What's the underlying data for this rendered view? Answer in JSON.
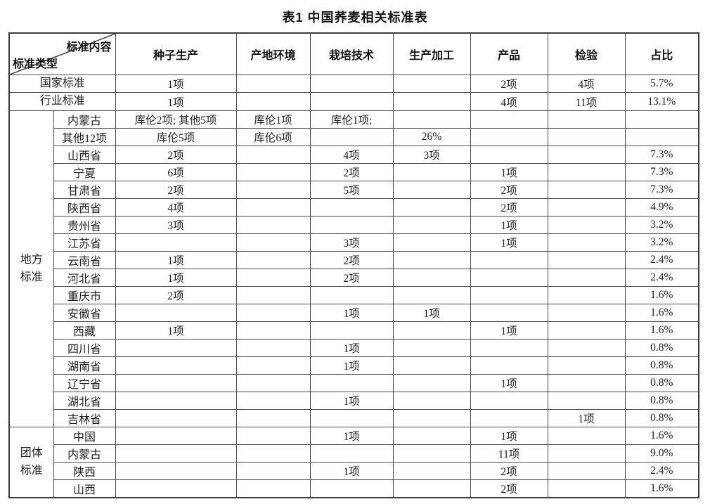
{
  "title": "表1 中国荞麦相关标准表",
  "table": {
    "corner": {
      "top_right": "标准内容",
      "bottom_left": "标准类型"
    },
    "columns": [
      "种子生产",
      "产地环境",
      "栽培技术",
      "生产加工",
      "产品",
      "检验",
      "占比"
    ],
    "sections": [
      {
        "category": "国家标准",
        "merged": true,
        "rows": [
          {
            "cells": [
              "1项",
              "",
              "",
              "",
              "2项",
              "4项",
              "5.7%"
            ]
          }
        ]
      },
      {
        "category": "行业标准",
        "merged": true,
        "rows": [
          {
            "cells": [
              "1项",
              "",
              "",
              "",
              "4项",
              "11项",
              "13.1%"
            ]
          }
        ]
      },
      {
        "category": "地方标准",
        "category_display": "地方\n标准",
        "merged": false,
        "rows": [
          {
            "region": "内蒙古",
            "cells": [
              "库伦2项; 其他5项",
              "库伦1项",
              "库伦1项;",
              "",
              "",
              "",
              ""
            ]
          },
          {
            "region": "其他12项",
            "cells": [
              "库伦5项",
              "库伦6项",
              "",
              "26%",
              "",
              "",
              ""
            ]
          },
          {
            "region": "山西省",
            "cells": [
              "2项",
              "",
              "4项",
              "3项",
              "",
              "",
              "7.3%"
            ]
          },
          {
            "region": "宁夏",
            "cells": [
              "6项",
              "",
              "2项",
              "",
              "1项",
              "",
              "7.3%"
            ]
          },
          {
            "region": "甘肃省",
            "cells": [
              "2项",
              "",
              "5项",
              "",
              "2项",
              "",
              "7.3%"
            ]
          },
          {
            "region": "陕西省",
            "cells": [
              "4项",
              "",
              "",
              "",
              "2项",
              "",
              "4.9%"
            ]
          },
          {
            "region": "贵州省",
            "cells": [
              "3项",
              "",
              "",
              "",
              "1项",
              "",
              "3.2%"
            ]
          },
          {
            "region": "江苏省",
            "cells": [
              "",
              "",
              "3项",
              "",
              "1项",
              "",
              "3.2%"
            ]
          },
          {
            "region": "云南省",
            "cells": [
              "1项",
              "",
              "2项",
              "",
              "",
              "",
              "2.4%"
            ]
          },
          {
            "region": "河北省",
            "cells": [
              "1项",
              "",
              "2项",
              "",
              "",
              "",
              "2.4%"
            ]
          },
          {
            "region": "重庆市",
            "cells": [
              "2项",
              "",
              "",
              "",
              "",
              "",
              "1.6%"
            ]
          },
          {
            "region": "安徽省",
            "cells": [
              "",
              "",
              "1项",
              "1项",
              "",
              "",
              "1.6%"
            ]
          },
          {
            "region": "西藏",
            "cells": [
              "1项",
              "",
              "",
              "",
              "1项",
              "",
              "1.6%"
            ]
          },
          {
            "region": "四川省",
            "cells": [
              "",
              "",
              "1项",
              "",
              "",
              "",
              "0.8%"
            ]
          },
          {
            "region": "湖南省",
            "cells": [
              "",
              "",
              "1项",
              "",
              "",
              "",
              "0.8%"
            ]
          },
          {
            "region": "辽宁省",
            "cells": [
              "",
              "",
              "",
              "",
              "1项",
              "",
              "0.8%"
            ]
          },
          {
            "region": "湖北省",
            "cells": [
              "",
              "",
              "1项",
              "",
              "",
              "",
              "0.8%"
            ]
          },
          {
            "region": "吉林省",
            "cells": [
              "",
              "",
              "",
              "",
              "",
              "1项",
              "0.8%"
            ]
          }
        ]
      },
      {
        "category": "团体标准",
        "category_display": "团体\n标准",
        "merged": false,
        "rows": [
          {
            "region": "中国",
            "cells": [
              "",
              "",
              "1项",
              "",
              "1项",
              "",
              "1.6%"
            ]
          },
          {
            "region": "内蒙古",
            "cells": [
              "",
              "",
              "",
              "",
              "11项",
              "",
              "9.0%"
            ]
          },
          {
            "region": "陕西",
            "cells": [
              "",
              "",
              "1项",
              "",
              "2项",
              "",
              "2.4%"
            ]
          },
          {
            "region": "山西",
            "cells": [
              "",
              "",
              "",
              "",
              "2项",
              "",
              "1.6%"
            ]
          }
        ]
      }
    ]
  }
}
